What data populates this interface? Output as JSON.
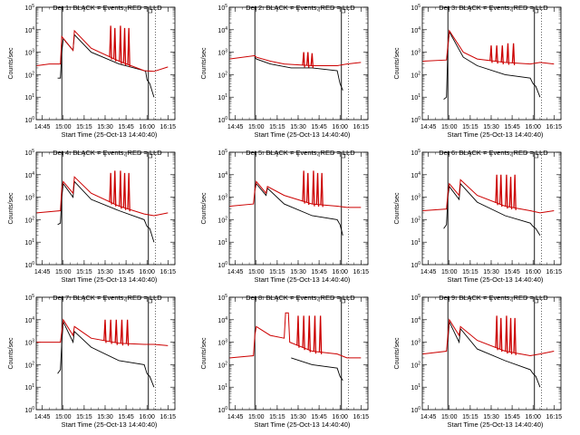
{
  "colors": {
    "events": "#000000",
    "lld": "#cc0000",
    "axis": "#000000"
  },
  "chart_data": [
    {
      "type": "line",
      "title": "Det 1: BLACK = Events, RED = LLD",
      "xlabel": "Start Time (25-Oct-13 14:40:40)",
      "ylabel": "Counts/sec",
      "scale": "log",
      "ylim": [
        1,
        100000
      ],
      "xlim": [
        "14:40:40",
        "16:20:00"
      ],
      "xticks": [
        "14:45",
        "15:00",
        "15:15",
        "15:30",
        "15:45",
        "16:00",
        "16:15"
      ],
      "yticks": [
        "10^0",
        "10^1",
        "10^2",
        "10^3",
        "10^4",
        "10^5"
      ],
      "markers": [
        "14:59",
        "16:01",
        "16:06"
      ],
      "series": [
        {
          "role": "events",
          "x": [
            "14:56",
            "14:58",
            "14:59",
            "15:00",
            "15:07",
            "15:08",
            "15:20",
            "15:40",
            "15:58",
            "15:59",
            "16:00",
            "16:02",
            "16:05"
          ],
          "y": [
            70,
            70,
            1000,
            4000,
            1200,
            6000,
            1000,
            300,
            150,
            140,
            60,
            40,
            10
          ]
        },
        {
          "role": "lld",
          "x": [
            "14:41",
            "14:50",
            "14:58",
            "14:59",
            "15:07",
            "15:08",
            "15:20",
            "15:40",
            "15:58",
            "16:05",
            "16:15"
          ],
          "y": [
            250,
            300,
            300,
            5000,
            1200,
            9000,
            1500,
            400,
            150,
            140,
            220
          ],
          "spikes": [
            [
              "15:34",
              15000
            ],
            [
              "15:37",
              12000
            ],
            [
              "15:41",
              15000
            ],
            [
              "15:44",
              12000
            ],
            [
              "15:47",
              12000
            ]
          ]
        }
      ]
    },
    {
      "type": "line",
      "title": "Det 2: BLACK = Events, RED = LLD",
      "xlabel": "Start Time (25-Oct-13 14:40:40)",
      "ylabel": "Counts/sec",
      "scale": "log",
      "ylim": [
        1,
        100000
      ],
      "xlim": [
        "14:40:40",
        "16:20:00"
      ],
      "xticks": [
        "14:45",
        "15:00",
        "15:15",
        "15:30",
        "15:45",
        "16:00",
        "16:15"
      ],
      "yticks": [
        "10^0",
        "10^1",
        "10^2",
        "10^3",
        "10^4",
        "10^5"
      ],
      "markers": [
        "14:59",
        "16:01",
        "16:06"
      ],
      "series": [
        {
          "role": "events",
          "x": [
            "14:59",
            "15:00",
            "15:10",
            "15:25",
            "15:40",
            "15:58",
            "16:00",
            "16:02"
          ],
          "y": [
            600,
            500,
            300,
            200,
            200,
            150,
            40,
            20
          ]
        },
        {
          "role": "lld",
          "x": [
            "14:41",
            "14:59",
            "15:00",
            "15:10",
            "15:20",
            "15:40",
            "15:58",
            "16:05",
            "16:15"
          ],
          "y": [
            500,
            700,
            600,
            400,
            300,
            250,
            250,
            300,
            350
          ],
          "spikes": [
            [
              "15:34",
              1000
            ],
            [
              "15:37",
              1000
            ],
            [
              "15:40",
              900
            ]
          ]
        }
      ]
    },
    {
      "type": "line",
      "title": "Det 3: BLACK = Events, RED = LLD",
      "xlabel": "Start Time (25-Oct-13 14:40:40)",
      "ylabel": "Counts/sec",
      "scale": "log",
      "ylim": [
        1,
        100000
      ],
      "xlim": [
        "14:40:40",
        "16:20:00"
      ],
      "xticks": [
        "14:45",
        "15:00",
        "15:15",
        "15:30",
        "15:45",
        "16:00",
        "16:15"
      ],
      "yticks": [
        "10^0",
        "10^1",
        "10^2",
        "10^3",
        "10^4",
        "10^5"
      ],
      "markers": [
        "14:59",
        "16:01",
        "16:06"
      ],
      "series": [
        {
          "role": "events",
          "x": [
            "14:56",
            "14:58",
            "14:59",
            "15:00",
            "15:10",
            "15:20",
            "15:40",
            "15:58",
            "16:00",
            "16:02",
            "16:05"
          ],
          "y": [
            8,
            10,
            1500,
            8000,
            600,
            250,
            100,
            70,
            40,
            30,
            10
          ]
        },
        {
          "role": "lld",
          "x": [
            "14:41",
            "14:58",
            "14:59",
            "15:00",
            "15:10",
            "15:20",
            "15:40",
            "15:58",
            "16:05",
            "16:15"
          ],
          "y": [
            400,
            450,
            2000,
            9000,
            1000,
            500,
            350,
            300,
            350,
            300
          ],
          "spikes": [
            [
              "15:30",
              2000
            ],
            [
              "15:34",
              2000
            ],
            [
              "15:38",
              2000
            ],
            [
              "15:42",
              2500
            ],
            [
              "15:46",
              2500
            ]
          ]
        }
      ]
    },
    {
      "type": "line",
      "title": "Det 4: BLACK = Events, RED = LLD",
      "xlabel": "Start Time (25-Oct-13 14:40:40)",
      "ylabel": "Counts/sec",
      "scale": "log",
      "ylim": [
        1,
        100000
      ],
      "xlim": [
        "14:40:40",
        "16:20:00"
      ],
      "xticks": [
        "14:45",
        "15:00",
        "15:15",
        "15:30",
        "15:45",
        "16:00",
        "16:15"
      ],
      "yticks": [
        "10^0",
        "10^1",
        "10^2",
        "10^3",
        "10^4",
        "10^5"
      ],
      "markers": [
        "14:59",
        "16:01",
        "16:06"
      ],
      "series": [
        {
          "role": "events",
          "x": [
            "14:56",
            "14:58",
            "14:59",
            "15:00",
            "15:07",
            "15:08",
            "15:20",
            "15:40",
            "15:58",
            "16:00",
            "16:02",
            "16:05"
          ],
          "y": [
            60,
            70,
            1000,
            4000,
            1000,
            5000,
            800,
            250,
            100,
            50,
            40,
            10
          ]
        },
        {
          "role": "lld",
          "x": [
            "14:41",
            "14:58",
            "14:59",
            "15:00",
            "15:07",
            "15:08",
            "15:20",
            "15:40",
            "15:58",
            "16:05",
            "16:15"
          ],
          "y": [
            200,
            250,
            2500,
            5000,
            1500,
            8000,
            1500,
            400,
            180,
            150,
            200
          ],
          "spikes": [
            [
              "15:34",
              12000
            ],
            [
              "15:37",
              15000
            ],
            [
              "15:41",
              15000
            ],
            [
              "15:44",
              12000
            ],
            [
              "15:47",
              12000
            ]
          ]
        }
      ]
    },
    {
      "type": "line",
      "title": "Det 5: BLACK = Events, RED = LLD",
      "xlabel": "Start Time (25-Oct-13 14:40:40)",
      "ylabel": "Counts/sec",
      "scale": "log",
      "ylim": [
        1,
        100000
      ],
      "xlim": [
        "14:40:40",
        "16:20:00"
      ],
      "xticks": [
        "14:45",
        "15:00",
        "15:15",
        "15:30",
        "15:45",
        "16:00",
        "16:15"
      ],
      "yticks": [
        "10^0",
        "10^1",
        "10^2",
        "10^3",
        "10^4",
        "10^5"
      ],
      "markers": [
        "14:59",
        "16:01",
        "16:06"
      ],
      "series": [
        {
          "role": "events",
          "x": [
            "14:59",
            "15:00",
            "15:07",
            "15:08",
            "15:20",
            "15:40",
            "15:58",
            "16:00",
            "16:02"
          ],
          "y": [
            2000,
            4000,
            1200,
            2500,
            500,
            150,
            100,
            60,
            20
          ]
        },
        {
          "role": "lld",
          "x": [
            "14:41",
            "14:58",
            "14:59",
            "15:00",
            "15:07",
            "15:08",
            "15:20",
            "15:40",
            "15:58",
            "16:05",
            "16:15"
          ],
          "y": [
            400,
            500,
            2000,
            5000,
            1500,
            3000,
            1200,
            500,
            400,
            350,
            350
          ],
          "spikes": [
            [
              "15:34",
              15000
            ],
            [
              "15:37",
              12000
            ],
            [
              "15:41",
              15000
            ],
            [
              "15:44",
              12000
            ],
            [
              "15:47",
              12000
            ]
          ]
        }
      ]
    },
    {
      "type": "line",
      "title": "Det 6: BLACK = Events, RED = LLD",
      "xlabel": "Start Time (25-Oct-13 14:40:40)",
      "ylabel": "Counts/sec",
      "scale": "log",
      "ylim": [
        1,
        100000
      ],
      "xlim": [
        "14:40:40",
        "16:20:00"
      ],
      "xticks": [
        "14:45",
        "15:00",
        "15:15",
        "15:30",
        "15:45",
        "16:00",
        "16:15"
      ],
      "yticks": [
        "10^0",
        "10^1",
        "10^2",
        "10^3",
        "10^4",
        "10^5"
      ],
      "markers": [
        "14:59",
        "16:01",
        "16:06"
      ],
      "series": [
        {
          "role": "events",
          "x": [
            "14:56",
            "14:58",
            "14:59",
            "15:00",
            "15:07",
            "15:08",
            "15:20",
            "15:40",
            "15:58",
            "16:00",
            "16:02",
            "16:05"
          ],
          "y": [
            40,
            60,
            1000,
            3000,
            800,
            4000,
            600,
            150,
            70,
            50,
            40,
            20
          ]
        },
        {
          "role": "lld",
          "x": [
            "14:41",
            "14:58",
            "14:59",
            "15:00",
            "15:07",
            "15:08",
            "15:20",
            "15:40",
            "15:58",
            "16:05",
            "16:15"
          ],
          "y": [
            250,
            300,
            1500,
            4000,
            1200,
            6000,
            1200,
            400,
            250,
            200,
            250
          ],
          "spikes": [
            [
              "15:34",
              10000
            ],
            [
              "15:37",
              10000
            ],
            [
              "15:41",
              10000
            ],
            [
              "15:44",
              8000
            ],
            [
              "15:47",
              10000
            ]
          ]
        }
      ]
    },
    {
      "type": "line",
      "title": "Det 7: BLACK = Events, RED = LLD",
      "xlabel": "Start Time (25-Oct-13 14:40:40)",
      "ylabel": "Counts/sec",
      "scale": "log",
      "ylim": [
        1,
        100000
      ],
      "xlim": [
        "14:40:40",
        "16:20:00"
      ],
      "xticks": [
        "14:45",
        "15:00",
        "15:15",
        "15:30",
        "15:45",
        "16:00",
        "16:15"
      ],
      "yticks": [
        "10^0",
        "10^1",
        "10^2",
        "10^3",
        "10^4",
        "10^5"
      ],
      "markers": [
        "14:59",
        "16:01",
        "16:06"
      ],
      "series": [
        {
          "role": "events",
          "x": [
            "14:56",
            "14:58",
            "14:59",
            "15:00",
            "15:07",
            "15:08",
            "15:20",
            "15:40",
            "15:58",
            "16:00",
            "16:02",
            "16:05"
          ],
          "y": [
            40,
            60,
            1000,
            8000,
            1000,
            3000,
            600,
            150,
            100,
            40,
            30,
            10
          ]
        },
        {
          "role": "lld",
          "x": [
            "14:41",
            "14:58",
            "14:59",
            "15:00",
            "15:07",
            "15:08",
            "15:20",
            "15:40",
            "15:58",
            "16:05",
            "16:15"
          ],
          "y": [
            1000,
            1000,
            3000,
            10000,
            2000,
            5000,
            1500,
            900,
            800,
            800,
            700
          ],
          "spikes": [
            [
              "15:30",
              10000
            ],
            [
              "15:34",
              10000
            ],
            [
              "15:38",
              10000
            ],
            [
              "15:42",
              10000
            ],
            [
              "15:46",
              10000
            ]
          ]
        }
      ]
    },
    {
      "type": "line",
      "title": "Det 8: BLACK = Events, RED = LLD",
      "xlabel": "Start Time (25-Oct-13 14:40:40)",
      "ylabel": "Counts/sec",
      "scale": "log",
      "ylim": [
        1,
        100000
      ],
      "xlim": [
        "14:40:40",
        "16:20:00"
      ],
      "xticks": [
        "14:45",
        "15:00",
        "15:15",
        "15:30",
        "15:45",
        "16:00",
        "16:15"
      ],
      "yticks": [
        "10^0",
        "10^1",
        "10^2",
        "10^3",
        "10^4",
        "10^5"
      ],
      "markers": [
        "14:59",
        "16:01",
        "16:06"
      ],
      "series": [
        {
          "role": "events",
          "x": [
            "15:25",
            "15:40",
            "15:58",
            "16:00",
            "16:02"
          ],
          "y": [
            200,
            100,
            70,
            30,
            20
          ]
        },
        {
          "role": "lld",
          "x": [
            "14:41",
            "14:58",
            "14:59",
            "15:00",
            "15:10",
            "15:20",
            "15:21",
            "15:23",
            "15:24",
            "15:40",
            "15:58",
            "16:05",
            "16:15"
          ],
          "y": [
            200,
            250,
            2000,
            5000,
            2000,
            1500,
            20000,
            20000,
            1000,
            400,
            300,
            200,
            200
          ],
          "spikes": [
            [
              "15:30",
              15000
            ],
            [
              "15:34",
              15000
            ],
            [
              "15:38",
              15000
            ],
            [
              "15:42",
              15000
            ],
            [
              "15:46",
              15000
            ]
          ]
        }
      ]
    },
    {
      "type": "line",
      "title": "Det 9: BLACK = Events, RED = LLD",
      "xlabel": "Start Time (25-Oct-13 14:40:40)",
      "ylabel": "Counts/sec",
      "scale": "log",
      "ylim": [
        1,
        100000
      ],
      "xlim": [
        "14:40:40",
        "16:20:00"
      ],
      "xticks": [
        "14:45",
        "15:00",
        "15:15",
        "15:30",
        "15:45",
        "16:00",
        "16:15"
      ],
      "yticks": [
        "10^0",
        "10^1",
        "10^2",
        "10^3",
        "10^4",
        "10^5"
      ],
      "markers": [
        "14:59",
        "16:01",
        "16:06"
      ],
      "series": [
        {
          "role": "events",
          "x": [
            "14:59",
            "15:00",
            "15:07",
            "15:08",
            "15:20",
            "15:40",
            "15:58",
            "16:00",
            "16:02",
            "16:05"
          ],
          "y": [
            1000,
            8000,
            1000,
            4000,
            500,
            150,
            60,
            40,
            30,
            10
          ]
        },
        {
          "role": "lld",
          "x": [
            "14:41",
            "14:58",
            "14:59",
            "15:00",
            "15:07",
            "15:08",
            "15:20",
            "15:40",
            "15:58",
            "16:05",
            "16:15"
          ],
          "y": [
            300,
            400,
            2000,
            10000,
            2000,
            5000,
            1200,
            400,
            250,
            300,
            400
          ],
          "spikes": [
            [
              "15:34",
              15000
            ],
            [
              "15:37",
              12000
            ],
            [
              "15:41",
              15000
            ],
            [
              "15:44",
              12000
            ],
            [
              "15:47",
              12000
            ]
          ]
        }
      ]
    }
  ]
}
